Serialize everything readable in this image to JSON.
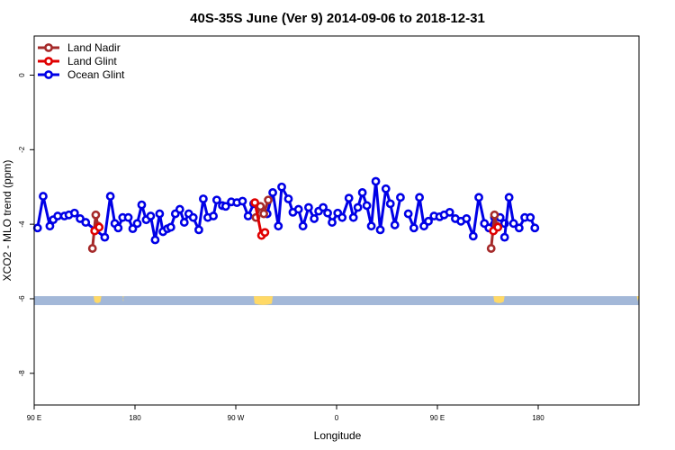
{
  "chart_data": {
    "type": "line",
    "title": "40S-35S June (Ver 9)   2014-09-06 to 2018-12-31",
    "xlabel": "Longitude",
    "ylabel": "XCO2 - MLO trend (ppm)",
    "xlim": [
      90,
      630
    ],
    "ylim": [
      -8.85,
      1.05
    ],
    "x_ticks": [
      {
        "value": 90,
        "label": "90 E"
      },
      {
        "value": 180,
        "label": "180"
      },
      {
        "value": 270,
        "label": "90 W"
      },
      {
        "value": 360,
        "label": "0"
      },
      {
        "value": 450,
        "label": "90 E"
      },
      {
        "value": 540,
        "label": "180"
      }
    ],
    "y_ticks": [
      {
        "value": 0,
        "label": "0"
      },
      {
        "value": -2,
        "label": "-2"
      },
      {
        "value": -4,
        "label": "-4"
      },
      {
        "value": -6,
        "label": "-6"
      },
      {
        "value": -8,
        "label": "-8"
      }
    ],
    "grid": false,
    "legend_position": "top-left",
    "land_strip": {
      "y_top": -5.93,
      "y_bottom": -6.17,
      "ocean_color": "#a3b8d8",
      "land_color": "#ffd966"
    },
    "land_patches": [
      {
        "x": [
          143,
          150
        ],
        "y_extent": 0.15
      },
      {
        "x": [
          169,
          170
        ],
        "y_extent": 0.1
      },
      {
        "x": [
          286,
          303
        ],
        "y_extent": 0.2
      },
      {
        "x": [
          500,
          510
        ],
        "y_extent": 0.15
      },
      {
        "x": [
          628,
          630
        ],
        "y_extent": 0.1
      }
    ],
    "series": [
      {
        "name": "Land Nadir",
        "color": "#a52a2a",
        "segments": [
          [
            [
              142,
              -4.65
            ],
            [
              145,
              -3.75
            ],
            [
              147,
              -4.05
            ]
          ],
          [
            [
              288,
              -3.82
            ],
            [
              292,
              -3.52
            ],
            [
              295,
              -3.72
            ],
            [
              299,
              -3.35
            ]
          ],
          [
            [
              498,
              -4.65
            ],
            [
              501,
              -3.75
            ],
            [
              503,
              -4.05
            ]
          ]
        ]
      },
      {
        "name": "Land Glint",
        "color": "#e00000",
        "segments": [
          [
            [
              144,
              -4.18
            ],
            [
              148,
              -4.08
            ]
          ],
          [
            [
              287,
              -3.42
            ],
            [
              293,
              -4.3
            ],
            [
              296,
              -4.22
            ]
          ],
          [
            [
              500,
              -4.18
            ],
            [
              504,
              -4.08
            ]
          ]
        ]
      },
      {
        "name": "Ocean Glint",
        "color": "#0000e6",
        "segments": [
          [
            [
              93,
              -4.1
            ],
            [
              98,
              -3.25
            ],
            [
              104,
              -4.05
            ],
            [
              107,
              -3.88
            ],
            [
              111,
              -3.78
            ],
            [
              117,
              -3.78
            ],
            [
              121,
              -3.75
            ],
            [
              126,
              -3.7
            ],
            [
              131,
              -3.85
            ],
            [
              136,
              -3.95
            ],
            [
              153,
              -4.35
            ],
            [
              158,
              -3.25
            ],
            [
              162,
              -3.98
            ],
            [
              165,
              -4.1
            ],
            [
              169,
              -3.82
            ],
            [
              174,
              -3.82
            ],
            [
              178,
              -4.12
            ],
            [
              182,
              -3.98
            ],
            [
              186,
              -3.48
            ],
            [
              190,
              -3.88
            ],
            [
              194,
              -3.78
            ],
            [
              198,
              -4.42
            ],
            [
              202,
              -3.72
            ],
            [
              205,
              -4.2
            ],
            [
              209,
              -4.12
            ],
            [
              212,
              -4.08
            ],
            [
              216,
              -3.72
            ],
            [
              220,
              -3.6
            ],
            [
              224,
              -3.95
            ],
            [
              228,
              -3.72
            ],
            [
              232,
              -3.82
            ],
            [
              237,
              -4.15
            ],
            [
              241,
              -3.32
            ],
            [
              245,
              -3.82
            ],
            [
              250,
              -3.78
            ],
            [
              253,
              -3.35
            ],
            [
              258,
              -3.5
            ],
            [
              261,
              -3.52
            ],
            [
              266,
              -3.4
            ],
            [
              271,
              -3.42
            ],
            [
              276,
              -3.38
            ],
            [
              281,
              -3.78
            ],
            [
              286,
              -3.45
            ]
          ],
          [
            [
              298,
              -3.72
            ],
            [
              303,
              -3.15
            ],
            [
              308,
              -4.05
            ],
            [
              311,
              -3.0
            ],
            [
              317,
              -3.32
            ],
            [
              321,
              -3.68
            ],
            [
              326,
              -3.6
            ],
            [
              330,
              -4.05
            ],
            [
              335,
              -3.55
            ],
            [
              340,
              -3.85
            ],
            [
              344,
              -3.65
            ],
            [
              348,
              -3.55
            ],
            [
              352,
              -3.7
            ],
            [
              356,
              -3.95
            ],
            [
              361,
              -3.7
            ],
            [
              365,
              -3.82
            ],
            [
              371,
              -3.3
            ],
            [
              375,
              -3.82
            ],
            [
              379,
              -3.55
            ],
            [
              383,
              -3.15
            ],
            [
              387,
              -3.5
            ],
            [
              391,
              -4.05
            ],
            [
              395,
              -2.85
            ],
            [
              399,
              -4.15
            ],
            [
              404,
              -3.05
            ],
            [
              408,
              -3.45
            ],
            [
              412,
              -4.02
            ],
            [
              417,
              -3.28
            ]
          ],
          [
            [
              424,
              -3.72
            ],
            [
              429,
              -4.1
            ],
            [
              434,
              -3.28
            ],
            [
              438,
              -4.05
            ],
            [
              442,
              -3.92
            ],
            [
              447,
              -3.78
            ],
            [
              452,
              -3.8
            ],
            [
              456,
              -3.75
            ],
            [
              461,
              -3.68
            ],
            [
              466,
              -3.85
            ],
            [
              471,
              -3.92
            ],
            [
              476,
              -3.85
            ],
            [
              482,
              -4.32
            ],
            [
              487,
              -3.28
            ],
            [
              492,
              -3.98
            ],
            [
              496,
              -4.1
            ],
            [
              501,
              -3.82
            ],
            [
              506,
              -3.82
            ],
            [
              510,
              -3.98
            ]
          ],
          [
            [
              510,
              -4.35
            ],
            [
              514,
              -3.28
            ],
            [
              518,
              -3.98
            ],
            [
              523,
              -4.1
            ],
            [
              528,
              -3.82
            ],
            [
              533,
              -3.82
            ],
            [
              537,
              -4.1
            ]
          ]
        ]
      }
    ]
  }
}
